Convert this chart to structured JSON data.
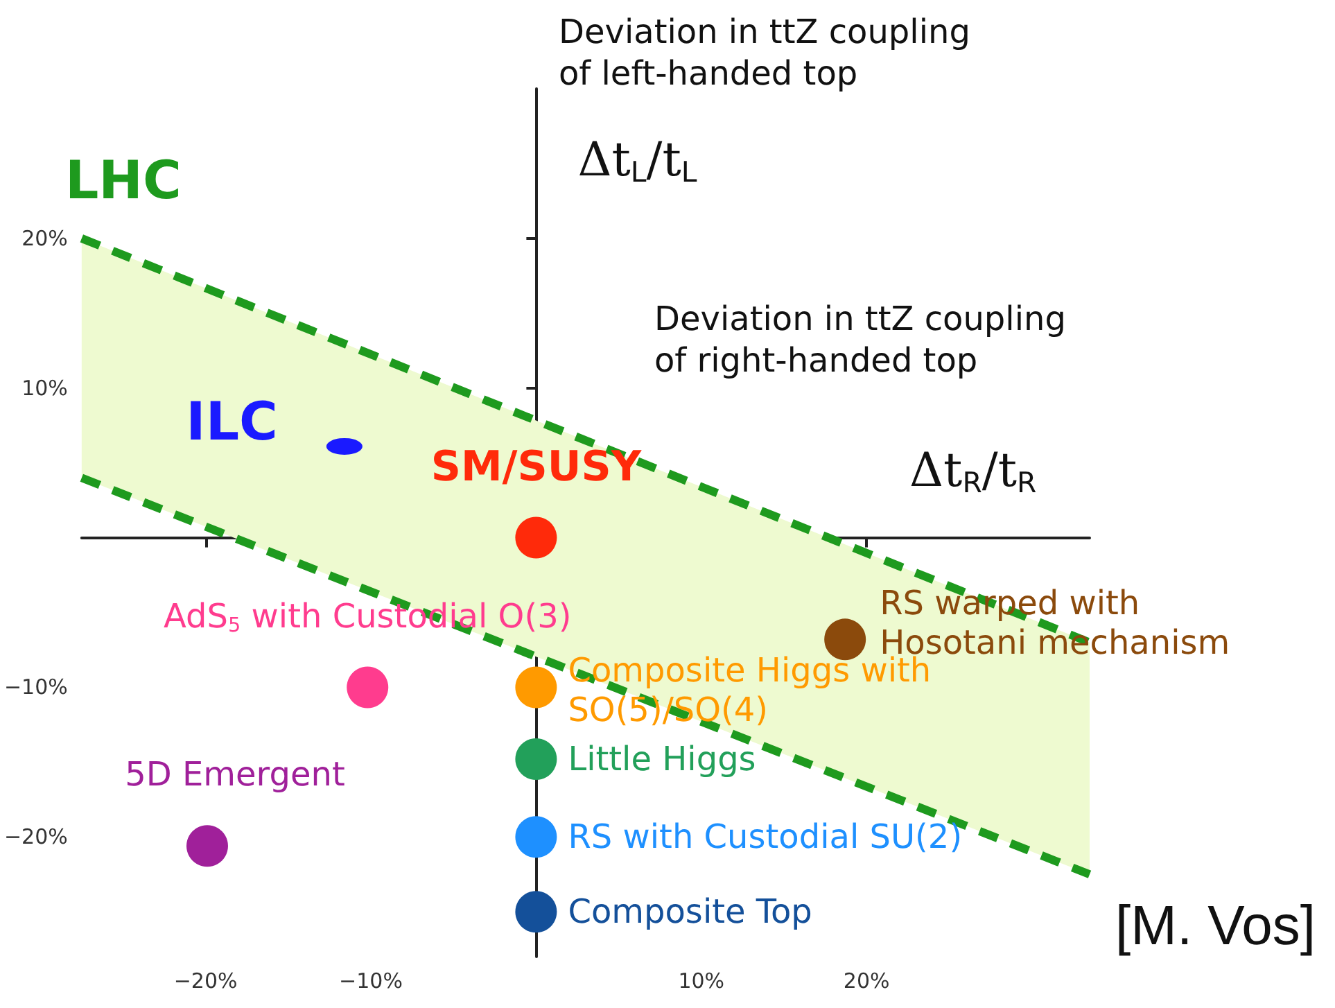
{
  "chart_data": {
    "type": "scatter",
    "xlabel": "Δt$_{R}$/t$_{R}$",
    "ylabel": "Δt$_{L}$/t$_{L}$",
    "annotations": [
      "Deviation in ttZ coupling\nof left-handed top",
      "Deviation in ttZ coupling\nof right-handed top",
      "[M. Vos]"
    ],
    "xlim": [
      -27.5,
      33.5
    ],
    "ylim": [
      -28,
      30
    ],
    "xticks": [
      {
        "value": -20,
        "label": "−20%"
      },
      {
        "value": -10,
        "label": "−10%"
      },
      {
        "value": 10,
        "label": "10%"
      },
      {
        "value": 20,
        "label": "20%"
      }
    ],
    "yticks": [
      {
        "value": -20,
        "label": "−20%"
      },
      {
        "value": -10,
        "label": "−10%"
      },
      {
        "value": 10,
        "label": "10%"
      },
      {
        "value": 20,
        "label": "20%"
      }
    ],
    "grid": false,
    "legend": false,
    "marker": "circle",
    "series": [
      {
        "name": "LHC",
        "type": "line",
        "line_style": "dashed",
        "marker": "none",
        "color": "#1e9a1e",
        "x": [
          -27.5,
          33.5
        ],
        "values": [
          20,
          -7
        ]
      },
      {
        "type": "line",
        "line_style": "dashed",
        "marker": "none",
        "color": "#1e9a1e",
        "x": [
          -27.5,
          33.5
        ],
        "values": [
          4,
          -22.5
        ]
      },
      {
        "name": "ILC",
        "color": "#1a1aff",
        "x": [
          -11.6
        ],
        "values": [
          6.1
        ]
      },
      {
        "name": "SM/SUSY",
        "color": "#ff2a0a",
        "x": [
          0
        ],
        "values": [
          0
        ]
      },
      {
        "name": "RS warped with\nHosotani mechanism",
        "color": "#8b4a0c",
        "x": [
          18.7
        ],
        "values": [
          -6.8
        ]
      },
      {
        "name": "AdS$_{5}$ with Custodial O(3)",
        "color": "#ff3c8e",
        "x": [
          -10.2
        ],
        "values": [
          -10
        ]
      },
      {
        "name": "Composite Higgs with\nSO(5)/SO(4)",
        "color": "#ff9a00",
        "x": [
          0
        ],
        "values": [
          -10
        ]
      },
      {
        "name": "Little Higgs",
        "color": "#22a05a",
        "x": [
          0
        ],
        "values": [
          -14.8
        ]
      },
      {
        "name": "5D Emergent",
        "color": "#a0209a",
        "x": [
          -19.9
        ],
        "values": [
          -20.6
        ]
      },
      {
        "name": "RS with Custodial SU(2)",
        "color": "#1e90ff",
        "x": [
          0
        ],
        "values": [
          -20
        ]
      },
      {
        "name": "Composite Top",
        "color": "#14509a",
        "x": [
          0
        ],
        "values": [
          -25
        ]
      }
    ]
  }
}
